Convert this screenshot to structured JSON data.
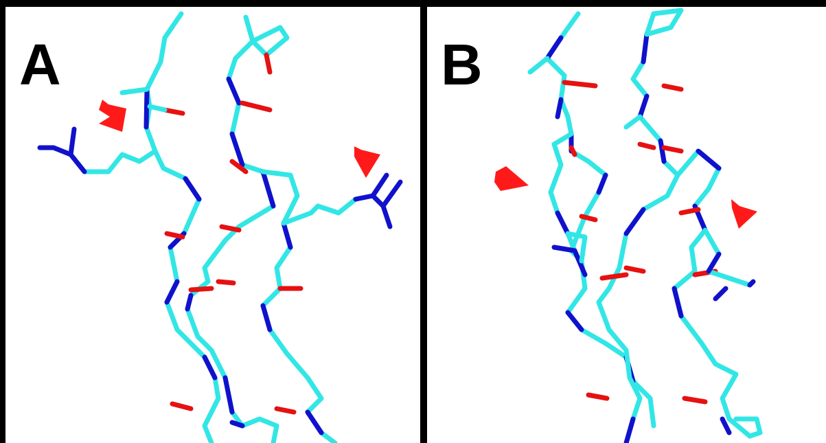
{
  "panels": [
    {
      "label": "A"
    },
    {
      "label": "B"
    }
  ],
  "colors": {
    "carbon": "#33e6e6",
    "nitrogen": "#1111cc",
    "oxygen": "#e61111",
    "arrow": "#ff1a1a",
    "border": "#000000"
  }
}
